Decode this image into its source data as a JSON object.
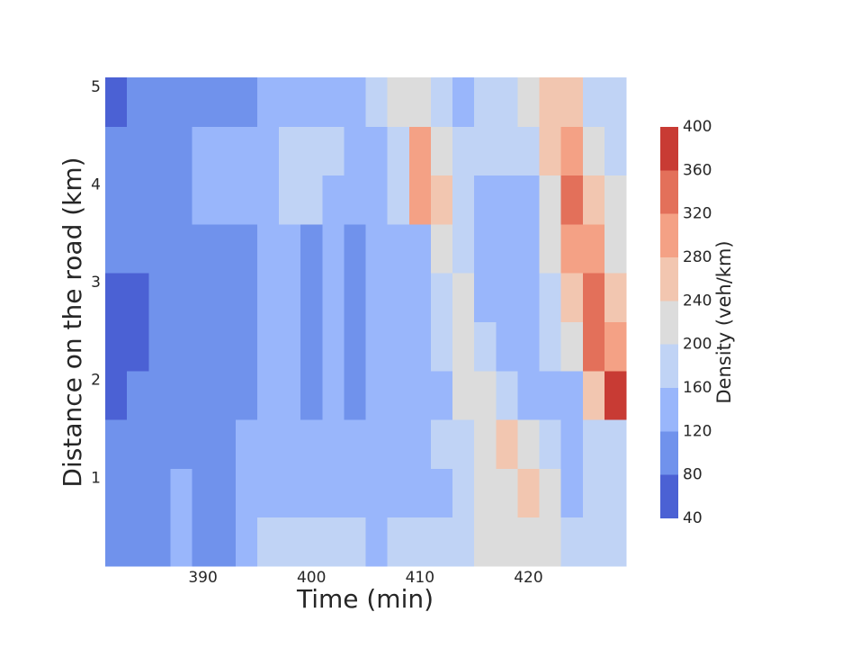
{
  "chart_data": {
    "type": "contour",
    "xlabel": "Time (min)",
    "ylabel": "Distance on the road (km)",
    "colorbar_label": "Density (veh/km)",
    "x": [
      382,
      384,
      386,
      388,
      390,
      392,
      394,
      396,
      398,
      400,
      402,
      404,
      406,
      408,
      410,
      412,
      414,
      416,
      418,
      420,
      422,
      424,
      426,
      428
    ],
    "y": [
      0.35,
      0.85,
      1.35,
      1.85,
      2.35,
      2.85,
      3.35,
      3.85,
      4.35,
      4.85
    ],
    "z": [
      [
        100,
        100,
        110,
        130,
        100,
        110,
        150,
        170,
        180,
        170,
        180,
        180,
        150,
        170,
        170,
        170,
        190,
        210,
        220,
        230,
        210,
        180,
        180,
        180
      ],
      [
        100,
        100,
        110,
        130,
        110,
        110,
        140,
        140,
        140,
        150,
        150,
        150,
        150,
        150,
        150,
        150,
        160,
        200,
        230,
        250,
        210,
        150,
        180,
        180
      ],
      [
        90,
        100,
        100,
        110,
        100,
        100,
        120,
        130,
        130,
        140,
        140,
        140,
        140,
        140,
        150,
        160,
        180,
        220,
        250,
        220,
        170,
        140,
        190,
        190
      ],
      [
        70,
        90,
        100,
        100,
        100,
        100,
        110,
        130,
        140,
        110,
        120,
        110,
        130,
        140,
        140,
        150,
        200,
        220,
        180,
        150,
        140,
        150,
        250,
        360
      ],
      [
        60,
        70,
        90,
        100,
        100,
        100,
        110,
        130,
        140,
        100,
        130,
        100,
        130,
        140,
        140,
        160,
        210,
        180,
        140,
        140,
        160,
        200,
        330,
        300
      ],
      [
        60,
        70,
        90,
        100,
        100,
        100,
        110,
        130,
        140,
        100,
        140,
        100,
        130,
        140,
        140,
        190,
        200,
        150,
        130,
        130,
        170,
        270,
        350,
        250
      ],
      [
        80,
        80,
        90,
        100,
        100,
        100,
        110,
        130,
        140,
        110,
        140,
        110,
        140,
        140,
        150,
        210,
        180,
        140,
        120,
        140,
        200,
        300,
        310,
        220
      ],
      [
        100,
        100,
        100,
        110,
        130,
        130,
        140,
        150,
        170,
        160,
        150,
        140,
        150,
        160,
        280,
        240,
        180,
        150,
        140,
        150,
        220,
        330,
        250,
        210
      ],
      [
        100,
        100,
        100,
        100,
        130,
        140,
        150,
        150,
        170,
        170,
        160,
        150,
        150,
        180,
        300,
        230,
        170,
        170,
        160,
        170,
        270,
        300,
        230,
        190
      ],
      [
        70,
        100,
        100,
        100,
        110,
        110,
        110,
        130,
        140,
        140,
        140,
        150,
        160,
        220,
        210,
        170,
        150,
        170,
        180,
        200,
        250,
        240,
        180,
        160
      ]
    ],
    "xlim": [
      381,
      429
    ],
    "ylim": [
      0.1,
      5.1
    ],
    "xticks": [
      390,
      400,
      410,
      420
    ],
    "yticks": [
      1,
      2,
      3,
      4,
      5
    ],
    "levels": [
      40,
      80,
      120,
      160,
      200,
      240,
      280,
      320,
      360,
      400
    ],
    "colors": [
      "#4b61d4",
      "#7092ec",
      "#99b6fb",
      "#c0d3f5",
      "#dcdcdc",
      "#f2c6b0",
      "#f4a185",
      "#e3705a",
      "#c83b34"
    ]
  }
}
